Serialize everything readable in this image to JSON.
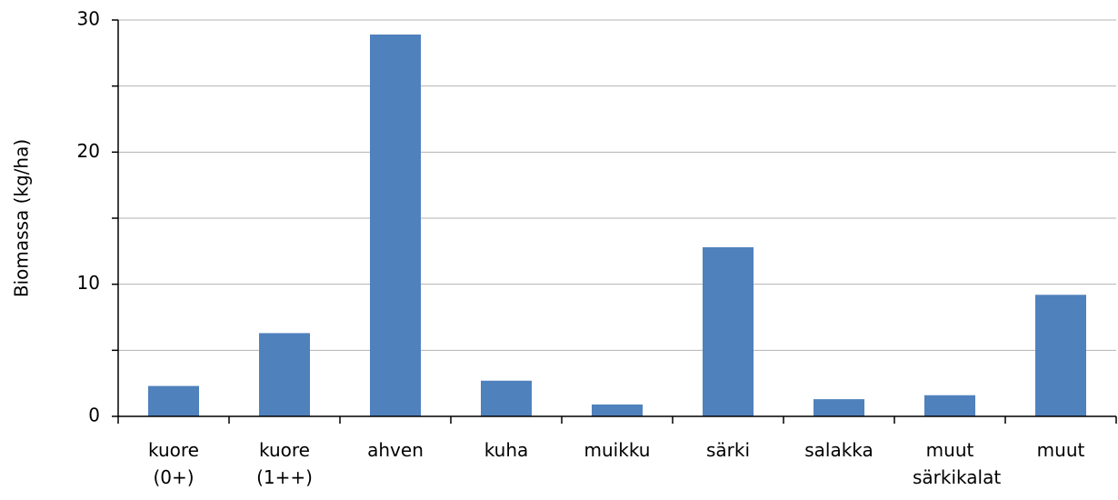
{
  "chart_data": {
    "type": "bar",
    "y_label": "Biomassa (kg/ha)",
    "categories": [
      "kuore (0+)",
      "kuore (1++)",
      "ahven",
      "kuha",
      "muikku",
      "särki",
      "salakka",
      "muut särkikalat",
      "muut"
    ],
    "values": [
      2.3,
      6.3,
      28.9,
      2.7,
      0.9,
      12.8,
      1.3,
      1.6,
      9.2
    ],
    "color": "#4f81bd",
    "ylim": [
      0,
      30
    ],
    "yticks": [
      0,
      10,
      20,
      30
    ],
    "yticks_minor": [
      5,
      15,
      25
    ],
    "grid": true
  }
}
